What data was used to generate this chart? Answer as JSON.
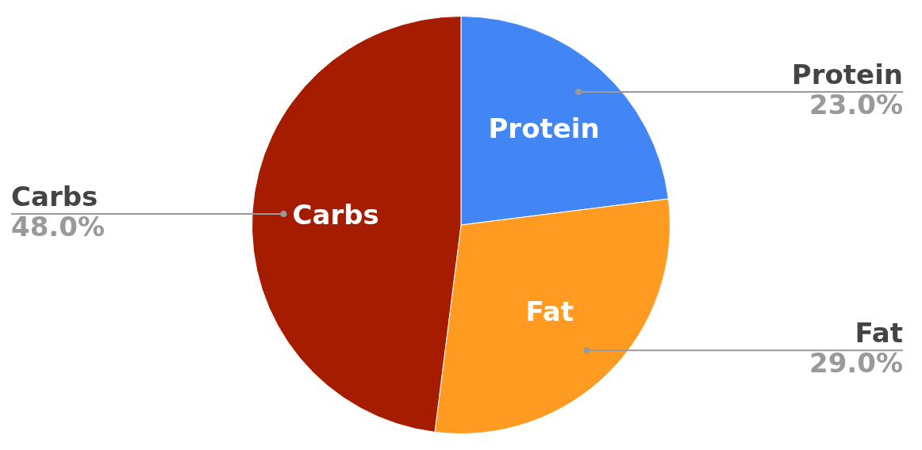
{
  "chart_data": {
    "type": "pie",
    "categories": [
      "Protein",
      "Fat",
      "Carbs"
    ],
    "values": [
      23,
      29,
      48
    ],
    "colors": [
      "#4285f4",
      "#ff9b21",
      "#a61c00"
    ],
    "value_labels": [
      "23.0%",
      "29.0%",
      "48.0%"
    ]
  }
}
